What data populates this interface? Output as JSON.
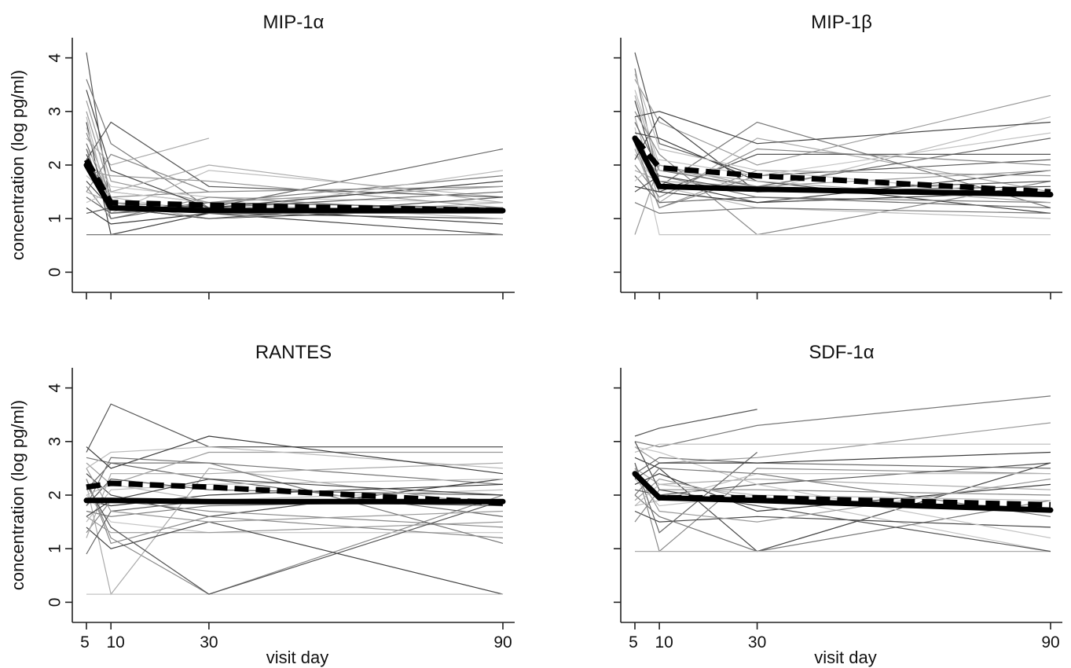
{
  "chart_data": [
    {
      "type": "line",
      "title": "MIP-1α",
      "ylabel": "concentration (log pg/ml)",
      "xlabel": "",
      "x": [
        5,
        10,
        30,
        90
      ],
      "x_ticks": [
        "5",
        "10",
        "30",
        "90"
      ],
      "y_ticks": [
        "0",
        "1",
        "2",
        "3",
        "4"
      ],
      "xlim": [
        2,
        92
      ],
      "ylim": [
        -0.2,
        4.2
      ],
      "summary_series": [
        {
          "style": "solid",
          "values": [
            2.0,
            1.2,
            1.15,
            1.15
          ]
        },
        {
          "style": "dashed",
          "values": [
            2.1,
            1.3,
            1.25,
            1.15
          ]
        }
      ],
      "individual_profiles": [
        [
          4.1,
          1.2,
          1.1,
          1.0
        ],
        [
          3.6,
          2.4,
          1.2,
          1.1
        ],
        [
          3.0,
          1.5,
          1.3,
          1.2
        ],
        [
          2.9,
          1.1,
          1.9,
          1.4
        ],
        [
          2.8,
          0.7,
          1.1,
          0.7
        ],
        [
          2.6,
          1.4,
          1.5,
          1.6
        ],
        [
          2.5,
          2.0,
          2.5,
          null
        ],
        [
          2.4,
          1.3,
          1.2,
          2.3
        ],
        [
          2.3,
          1.6,
          1.4,
          1.3
        ],
        [
          2.2,
          1.2,
          1.0,
          1.2
        ],
        [
          2.1,
          2.8,
          1.6,
          1.4
        ],
        [
          2.0,
          1.1,
          1.3,
          1.8
        ],
        [
          1.9,
          1.8,
          1.7,
          1.2
        ],
        [
          1.8,
          1.4,
          1.1,
          1.9
        ],
        [
          1.7,
          1.2,
          1.2,
          0.9
        ],
        [
          1.6,
          1.0,
          1.4,
          1.1
        ],
        [
          1.5,
          1.3,
          1.0,
          1.3
        ],
        [
          1.4,
          1.1,
          1.2,
          1.5
        ],
        [
          1.3,
          1.5,
          1.3,
          1.0
        ],
        [
          1.2,
          0.9,
          1.1,
          1.2
        ],
        [
          1.1,
          1.2,
          1.0,
          1.4
        ],
        [
          0.7,
          0.7,
          0.7,
          0.7
        ],
        [
          3.2,
          1.7,
          1.3,
          1.6
        ],
        [
          2.7,
          1.3,
          1.1,
          1.1
        ],
        [
          3.4,
          1.9,
          1.2,
          1.7
        ],
        [
          1.5,
          2.2,
          1.5,
          null
        ],
        [
          2.0,
          1.5,
          2.0,
          1.3
        ],
        [
          2.3,
          1.0,
          1.3,
          1.2
        ]
      ]
    },
    {
      "type": "line",
      "title": "MIP-1β",
      "ylabel": "",
      "xlabel": "",
      "x": [
        5,
        10,
        30,
        90
      ],
      "x_ticks": [
        "5",
        "10",
        "30",
        "90"
      ],
      "y_ticks": [
        "0",
        "1",
        "2",
        "3",
        "4"
      ],
      "xlim": [
        2,
        92
      ],
      "ylim": [
        -0.2,
        4.2
      ],
      "summary_series": [
        {
          "style": "solid",
          "values": [
            2.5,
            1.6,
            1.55,
            1.45
          ]
        },
        {
          "style": "dashed",
          "values": [
            2.5,
            1.95,
            1.8,
            1.5
          ]
        }
      ],
      "individual_profiles": [
        [
          4.1,
          2.4,
          1.8,
          2.1
        ],
        [
          3.8,
          1.6,
          2.8,
          1.2
        ],
        [
          3.6,
          2.8,
          2.0,
          3.3
        ],
        [
          3.4,
          2.0,
          1.5,
          2.9
        ],
        [
          3.2,
          1.7,
          1.3,
          1.9
        ],
        [
          3.0,
          2.2,
          0.7,
          1.7
        ],
        [
          2.9,
          1.3,
          2.5,
          1.5
        ],
        [
          2.8,
          1.9,
          1.6,
          2.5
        ],
        [
          2.7,
          0.7,
          0.7,
          0.7
        ],
        [
          2.6,
          2.5,
          1.7,
          1.1
        ],
        [
          2.5,
          1.5,
          2.2,
          2.2
        ],
        [
          2.4,
          1.8,
          1.4,
          1.3
        ],
        [
          2.3,
          1.2,
          1.9,
          1.8
        ],
        [
          2.2,
          1.6,
          1.2,
          1.0
        ],
        [
          2.1,
          2.9,
          1.5,
          1.6
        ],
        [
          2.0,
          1.4,
          2.3,
          2.0
        ],
        [
          1.9,
          1.7,
          1.6,
          1.4
        ],
        [
          1.8,
          1.3,
          1.4,
          1.2
        ],
        [
          1.7,
          2.1,
          1.8,
          2.6
        ],
        [
          1.6,
          1.5,
          1.3,
          1.5
        ],
        [
          1.5,
          1.8,
          1.5,
          1.7
        ],
        [
          1.3,
          1.1,
          1.2,
          1.1
        ],
        [
          0.7,
          2.0,
          1.6,
          1.9
        ],
        [
          3.7,
          2.3,
          1.9,
          1.4
        ],
        [
          2.9,
          3.0,
          2.4,
          2.8
        ],
        [
          2.4,
          1.2,
          1.8,
          null
        ],
        [
          3.3,
          1.9,
          1.7,
          1.3
        ]
      ]
    },
    {
      "type": "line",
      "title": "RANTES",
      "ylabel": "concentration (log pg/ml)",
      "xlabel": "visit day",
      "x": [
        5,
        10,
        30,
        90
      ],
      "x_ticks": [
        "5",
        "10",
        "30",
        "90"
      ],
      "y_ticks": [
        "0",
        "1",
        "2",
        "3",
        "4"
      ],
      "xlim": [
        2,
        92
      ],
      "ylim": [
        -0.2,
        4.2
      ],
      "summary_series": [
        {
          "style": "solid",
          "values": [
            1.9,
            1.9,
            1.88,
            1.88
          ]
        },
        {
          "style": "dashed",
          "values": [
            2.15,
            2.22,
            2.15,
            1.85
          ]
        }
      ],
      "individual_profiles": [
        [
          2.8,
          3.7,
          2.9,
          2.9
        ],
        [
          2.7,
          2.6,
          2.6,
          2.2
        ],
        [
          2.6,
          2.2,
          2.8,
          2.8
        ],
        [
          2.5,
          2.8,
          2.9,
          2.5
        ],
        [
          2.4,
          2.0,
          1.6,
          2.3
        ],
        [
          2.3,
          1.2,
          0.15,
          2.0
        ],
        [
          2.2,
          0.15,
          2.5,
          1.8
        ],
        [
          2.1,
          2.6,
          2.3,
          1.6
        ],
        [
          2.0,
          1.5,
          1.3,
          1.3
        ],
        [
          1.9,
          1.8,
          2.0,
          2.2
        ],
        [
          1.8,
          2.3,
          2.1,
          2.0
        ],
        [
          1.7,
          1.6,
          1.8,
          1.9
        ],
        [
          1.6,
          1.3,
          1.3,
          1.5
        ],
        [
          1.5,
          2.1,
          2.2,
          2.3
        ],
        [
          1.4,
          1.0,
          1.5,
          0.15
        ],
        [
          1.3,
          1.9,
          1.7,
          1.4
        ],
        [
          1.2,
          2.4,
          2.4,
          2.6
        ],
        [
          0.9,
          1.7,
          1.9,
          1.8
        ],
        [
          0.15,
          0.15,
          0.15,
          0.15
        ],
        [
          2.9,
          2.5,
          3.1,
          2.4
        ],
        [
          2.2,
          1.4,
          0.15,
          1.9
        ],
        [
          1.8,
          2.7,
          2.6,
          1.1
        ],
        [
          2.5,
          1.7,
          1.5,
          1.7
        ],
        [
          2.0,
          2.2,
          1.9,
          2.1
        ],
        [
          1.6,
          1.9,
          2.3,
          2.0
        ],
        [
          2.3,
          1.1,
          1.6,
          1.2
        ]
      ]
    },
    {
      "type": "line",
      "title": "SDF-1α",
      "ylabel": "",
      "xlabel": "visit day",
      "x": [
        5,
        10,
        30,
        90
      ],
      "x_ticks": [
        "5",
        "10",
        "30",
        "90"
      ],
      "y_ticks": [
        "0",
        "1",
        "2",
        "3",
        "4"
      ],
      "xlim": [
        2,
        92
      ],
      "ylim": [
        -0.2,
        4.2
      ],
      "summary_series": [
        {
          "style": "solid",
          "values": [
            2.4,
            1.95,
            1.9,
            1.72
          ]
        },
        {
          "style": "dashed",
          "values": [
            2.4,
            1.95,
            1.95,
            1.82
          ]
        }
      ],
      "individual_profiles": [
        [
          3.1,
          3.25,
          3.6,
          null
        ],
        [
          3.0,
          2.9,
          3.3,
          3.85
        ],
        [
          2.9,
          2.6,
          2.7,
          3.35
        ],
        [
          2.8,
          2.95,
          2.95,
          2.95
        ],
        [
          2.7,
          2.5,
          0.95,
          2.6
        ],
        [
          2.6,
          0.95,
          2.5,
          2.4
        ],
        [
          2.5,
          2.2,
          2.3,
          2.1
        ],
        [
          2.4,
          2.7,
          2.6,
          2.5
        ],
        [
          2.3,
          1.8,
          2.0,
          0.95
        ],
        [
          2.2,
          2.4,
          1.7,
          2.2
        ],
        [
          2.1,
          2.0,
          2.2,
          2.6
        ],
        [
          2.0,
          1.6,
          0.95,
          1.9
        ],
        [
          1.9,
          2.3,
          1.9,
          1.7
        ],
        [
          1.8,
          1.9,
          2.4,
          2.4
        ],
        [
          1.7,
          1.5,
          1.6,
          1.4
        ],
        [
          1.5,
          2.1,
          2.1,
          2.0
        ],
        [
          0.95,
          0.95,
          0.95,
          0.95
        ],
        [
          2.6,
          1.3,
          2.8,
          null
        ],
        [
          2.9,
          2.8,
          2.2,
          1.2
        ],
        [
          2.3,
          2.6,
          2.6,
          2.8
        ],
        [
          3.0,
          2.1,
          1.8,
          0.95
        ],
        [
          2.0,
          2.5,
          2.4,
          1.6
        ],
        [
          2.5,
          1.7,
          1.5,
          2.3
        ],
        [
          1.8,
          2.2,
          2.0,
          1.9
        ]
      ]
    }
  ]
}
